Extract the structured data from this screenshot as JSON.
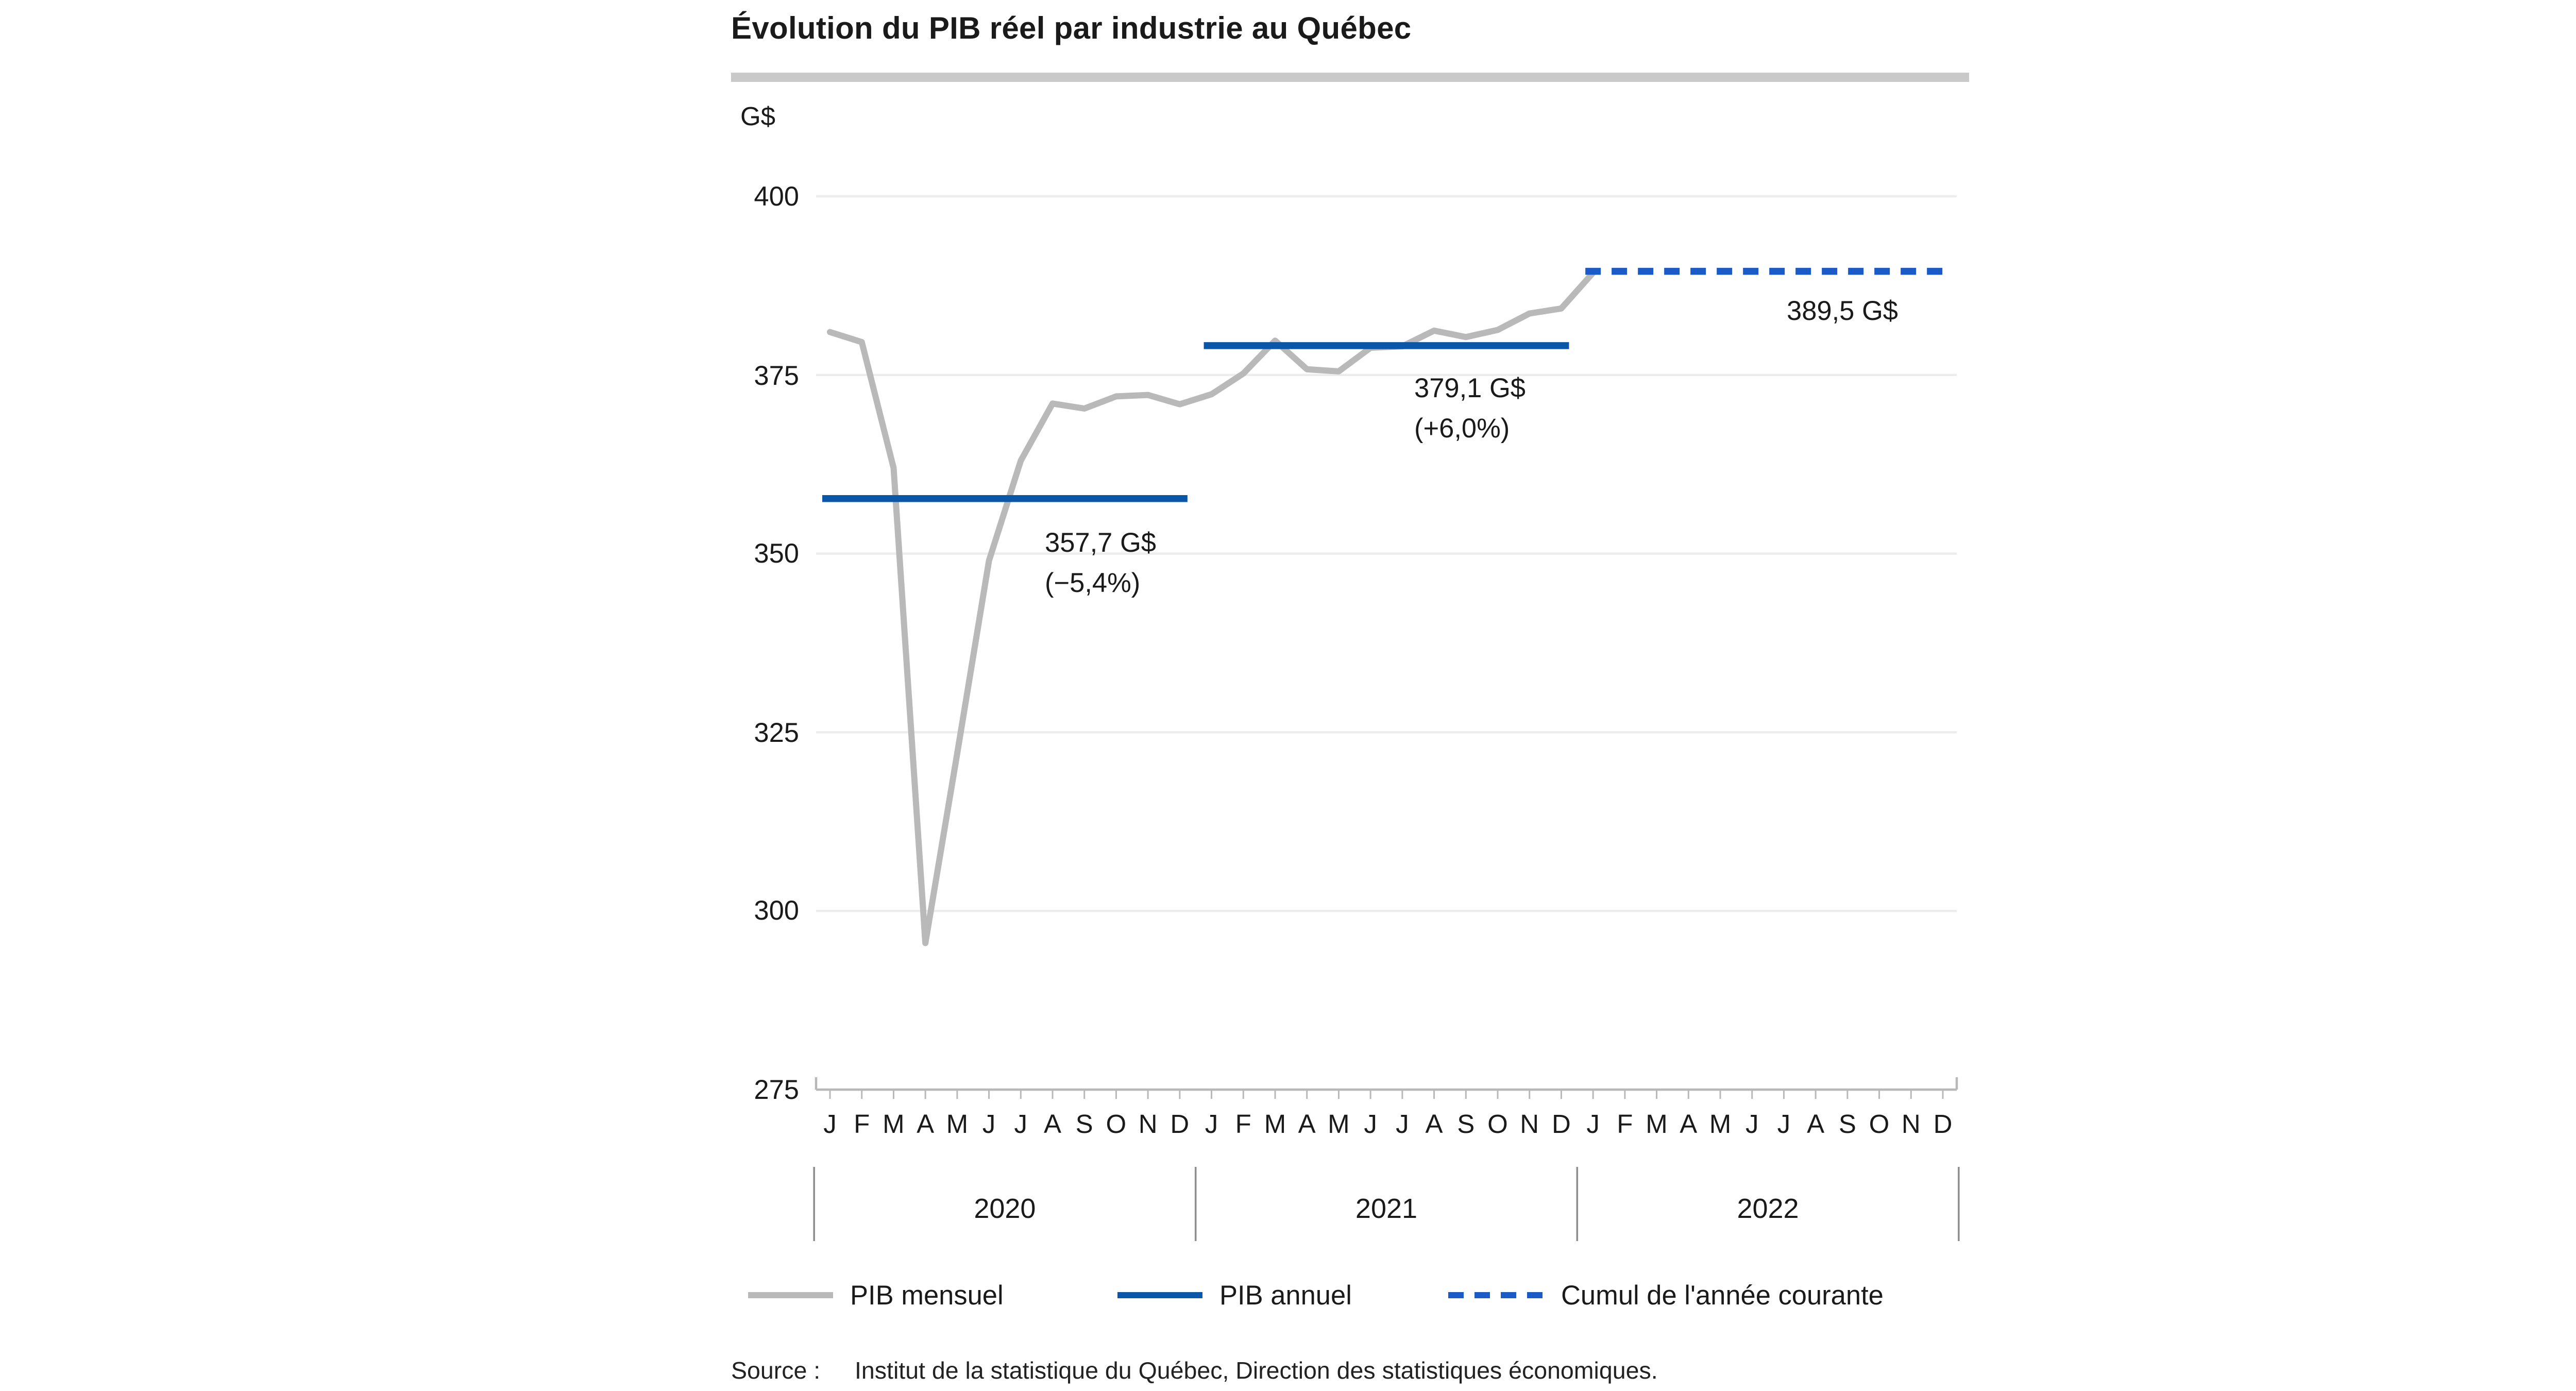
{
  "title": "Évolution du PIB réel par industrie au Québec",
  "colors": {
    "monthly_line": "#b9b9b9",
    "annual_line": "#0a56a8",
    "cumulative_line": "#1b5bc8",
    "gridline": "#ededed",
    "axis": "#b8b8b8",
    "title_rule": "#c9c9c9"
  },
  "legend": {
    "items": [
      {
        "label": "PIB mensuel",
        "style": "solid-gray"
      },
      {
        "label": "PIB annuel",
        "style": "solid-blue"
      },
      {
        "label": "Cumul de l'année courante",
        "style": "dashed-blue"
      }
    ]
  },
  "source": {
    "prefix": "Source :",
    "text": "Institut de la statistique du Québec, Direction des statistiques économiques."
  },
  "chart_data": {
    "type": "line",
    "title": "Évolution du PIB réel par industrie au Québec",
    "y_unit": "G$",
    "ylim": [
      275,
      400
    ],
    "yticks": [
      275,
      300,
      325,
      350,
      375,
      400
    ],
    "grid": "horizontal",
    "x_month_labels": [
      "J",
      "F",
      "M",
      "A",
      "M",
      "J",
      "J",
      "A",
      "S",
      "O",
      "N",
      "D"
    ],
    "years": [
      "2020",
      "2021",
      "2022"
    ],
    "series": [
      {
        "name": "PIB mensuel",
        "type": "line",
        "color": "#b9b9b9",
        "start_month_index": 0,
        "values": [
          381.0,
          379.6,
          362.0,
          295.5,
          322.0,
          349.0,
          363.0,
          371.0,
          370.3,
          372.0,
          372.2,
          370.9,
          372.3,
          375.2,
          379.8,
          375.8,
          375.5,
          378.8,
          379.0,
          381.2,
          380.3,
          381.3,
          383.6,
          384.3,
          389.3
        ]
      },
      {
        "name": "PIB annuel 2020",
        "type": "hline",
        "value": 357.7,
        "span_months": [
          0,
          11
        ],
        "dashed": false,
        "color": "#0a56a8",
        "label": "357,7 G$",
        "sublabel": "(−5,4%)"
      },
      {
        "name": "PIB annuel 2021",
        "type": "hline",
        "value": 379.1,
        "span_months": [
          12,
          23
        ],
        "dashed": false,
        "color": "#0a56a8",
        "label": "379,1 G$",
        "sublabel": "(+6,0%)"
      },
      {
        "name": "Cumul de l'année courante 2022",
        "type": "hline",
        "value": 389.5,
        "span_months": [
          24,
          35
        ],
        "dashed": true,
        "color": "#1b5bc8",
        "label": "389,5 G$",
        "sublabel": ""
      }
    ]
  }
}
